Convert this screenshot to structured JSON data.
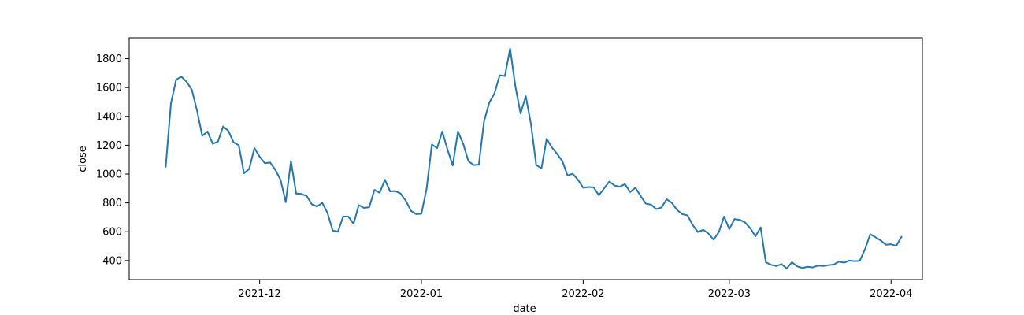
{
  "chart_data": {
    "type": "line",
    "title": "",
    "xlabel": "date",
    "ylabel": "close",
    "x_type": "date",
    "xlim": [
      "2021-11-06",
      "2022-04-07"
    ],
    "ylim": [
      268,
      1945
    ],
    "grid": false,
    "legend": "none",
    "x_ticks": [
      {
        "date": "2021-12-01",
        "label": "2021-12"
      },
      {
        "date": "2022-01-01",
        "label": "2022-01"
      },
      {
        "date": "2022-02-01",
        "label": "2022-02"
      },
      {
        "date": "2022-03-01",
        "label": "2022-03"
      },
      {
        "date": "2022-04-01",
        "label": "2022-04"
      }
    ],
    "y_ticks": [
      400,
      600,
      800,
      1000,
      1200,
      1400,
      1600,
      1800
    ],
    "series": [
      {
        "color": "#1f77b4",
        "points": [
          [
            "2021-11-13",
            1050
          ],
          [
            "2021-11-14",
            1490
          ],
          [
            "2021-11-15",
            1655
          ],
          [
            "2021-11-16",
            1675
          ],
          [
            "2021-11-17",
            1640
          ],
          [
            "2021-11-18",
            1585
          ],
          [
            "2021-11-19",
            1440
          ],
          [
            "2021-11-20",
            1265
          ],
          [
            "2021-11-21",
            1295
          ],
          [
            "2021-11-22",
            1210
          ],
          [
            "2021-11-23",
            1225
          ],
          [
            "2021-11-24",
            1330
          ],
          [
            "2021-11-25",
            1300
          ],
          [
            "2021-11-26",
            1220
          ],
          [
            "2021-11-27",
            1200
          ],
          [
            "2021-11-28",
            1005
          ],
          [
            "2021-11-29",
            1035
          ],
          [
            "2021-11-30",
            1180
          ],
          [
            "2021-12-01",
            1120
          ],
          [
            "2021-12-02",
            1075
          ],
          [
            "2021-12-03",
            1080
          ],
          [
            "2021-12-04",
            1030
          ],
          [
            "2021-12-05",
            960
          ],
          [
            "2021-12-06",
            805
          ],
          [
            "2021-12-07",
            1090
          ],
          [
            "2021-12-08",
            865
          ],
          [
            "2021-12-09",
            862
          ],
          [
            "2021-12-10",
            848
          ],
          [
            "2021-12-11",
            790
          ],
          [
            "2021-12-12",
            775
          ],
          [
            "2021-12-13",
            800
          ],
          [
            "2021-12-14",
            730
          ],
          [
            "2021-12-15",
            608
          ],
          [
            "2021-12-16",
            600
          ],
          [
            "2021-12-17",
            705
          ],
          [
            "2021-12-18",
            705
          ],
          [
            "2021-12-19",
            655
          ],
          [
            "2021-12-20",
            785
          ],
          [
            "2021-12-21",
            765
          ],
          [
            "2021-12-22",
            770
          ],
          [
            "2021-12-23",
            890
          ],
          [
            "2021-12-24",
            870
          ],
          [
            "2021-12-25",
            960
          ],
          [
            "2021-12-26",
            880
          ],
          [
            "2021-12-27",
            882
          ],
          [
            "2021-12-28",
            865
          ],
          [
            "2021-12-29",
            815
          ],
          [
            "2021-12-30",
            745
          ],
          [
            "2021-12-31",
            722
          ],
          [
            "2022-01-01",
            725
          ],
          [
            "2022-01-02",
            900
          ],
          [
            "2022-01-03",
            1205
          ],
          [
            "2022-01-04",
            1180
          ],
          [
            "2022-01-05",
            1295
          ],
          [
            "2022-01-06",
            1170
          ],
          [
            "2022-01-07",
            1060
          ],
          [
            "2022-01-08",
            1295
          ],
          [
            "2022-01-09",
            1210
          ],
          [
            "2022-01-10",
            1090
          ],
          [
            "2022-01-11",
            1062
          ],
          [
            "2022-01-12",
            1065
          ],
          [
            "2022-01-13",
            1365
          ],
          [
            "2022-01-14",
            1495
          ],
          [
            "2022-01-15",
            1560
          ],
          [
            "2022-01-16",
            1685
          ],
          [
            "2022-01-17",
            1680
          ],
          [
            "2022-01-18",
            1870
          ],
          [
            "2022-01-19",
            1610
          ],
          [
            "2022-01-20",
            1420
          ],
          [
            "2022-01-21",
            1540
          ],
          [
            "2022-01-22",
            1345
          ],
          [
            "2022-01-23",
            1062
          ],
          [
            "2022-01-24",
            1040
          ],
          [
            "2022-01-25",
            1245
          ],
          [
            "2022-01-26",
            1185
          ],
          [
            "2022-01-27",
            1140
          ],
          [
            "2022-01-28",
            1090
          ],
          [
            "2022-01-29",
            990
          ],
          [
            "2022-01-30",
            1002
          ],
          [
            "2022-01-31",
            960
          ],
          [
            "2022-02-01",
            905
          ],
          [
            "2022-02-02",
            910
          ],
          [
            "2022-02-03",
            908
          ],
          [
            "2022-02-04",
            853
          ],
          [
            "2022-02-05",
            900
          ],
          [
            "2022-02-06",
            948
          ],
          [
            "2022-02-07",
            920
          ],
          [
            "2022-02-08",
            912
          ],
          [
            "2022-02-09",
            930
          ],
          [
            "2022-02-10",
            875
          ],
          [
            "2022-02-11",
            905
          ],
          [
            "2022-02-12",
            848
          ],
          [
            "2022-02-13",
            795
          ],
          [
            "2022-02-14",
            788
          ],
          [
            "2022-02-15",
            757
          ],
          [
            "2022-02-16",
            768
          ],
          [
            "2022-02-17",
            825
          ],
          [
            "2022-02-18",
            800
          ],
          [
            "2022-02-19",
            750
          ],
          [
            "2022-02-20",
            722
          ],
          [
            "2022-02-21",
            713
          ],
          [
            "2022-02-22",
            645
          ],
          [
            "2022-02-23",
            598
          ],
          [
            "2022-02-24",
            613
          ],
          [
            "2022-02-25",
            587
          ],
          [
            "2022-02-26",
            545
          ],
          [
            "2022-02-27",
            598
          ],
          [
            "2022-02-28",
            705
          ],
          [
            "2022-03-01",
            618
          ],
          [
            "2022-03-02",
            688
          ],
          [
            "2022-03-03",
            682
          ],
          [
            "2022-03-04",
            665
          ],
          [
            "2022-03-05",
            625
          ],
          [
            "2022-03-06",
            568
          ],
          [
            "2022-03-07",
            630
          ],
          [
            "2022-03-08",
            388
          ],
          [
            "2022-03-09",
            370
          ],
          [
            "2022-03-10",
            362
          ],
          [
            "2022-03-11",
            375
          ],
          [
            "2022-03-12",
            345
          ],
          [
            "2022-03-13",
            388
          ],
          [
            "2022-03-14",
            360
          ],
          [
            "2022-03-15",
            348
          ],
          [
            "2022-03-16",
            357
          ],
          [
            "2022-03-17",
            352
          ],
          [
            "2022-03-18",
            365
          ],
          [
            "2022-03-19",
            362
          ],
          [
            "2022-03-20",
            368
          ],
          [
            "2022-03-21",
            372
          ],
          [
            "2022-03-22",
            392
          ],
          [
            "2022-03-23",
            385
          ],
          [
            "2022-03-24",
            400
          ],
          [
            "2022-03-25",
            396
          ],
          [
            "2022-03-26",
            398
          ],
          [
            "2022-03-27",
            478
          ],
          [
            "2022-03-28",
            582
          ],
          [
            "2022-03-29",
            562
          ],
          [
            "2022-03-30",
            540
          ],
          [
            "2022-03-31",
            510
          ],
          [
            "2022-04-01",
            513
          ],
          [
            "2022-04-02",
            502
          ],
          [
            "2022-04-03",
            565
          ]
        ]
      }
    ]
  }
}
